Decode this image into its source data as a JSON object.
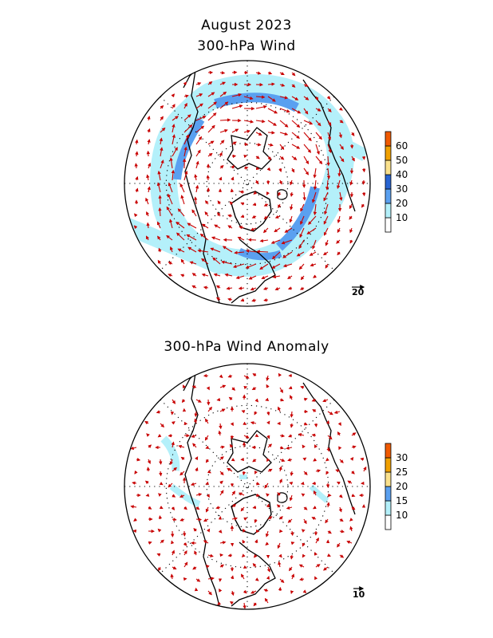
{
  "titles": {
    "month": "August 2023",
    "panel1": "300-hPa Wind",
    "panel2": "300-hPa Wind Anomaly"
  },
  "panel1": {
    "colorbar": {
      "ticks": [
        "10",
        "20",
        "30",
        "40",
        "50",
        "60"
      ],
      "colors": [
        "#ffffff",
        "#b4f0fa",
        "#5aa0f0",
        "#2864d2",
        "#fae18c",
        "#f0a000",
        "#f05a00"
      ]
    },
    "reference_vector": "20"
  },
  "panel2": {
    "colorbar": {
      "ticks": [
        "10",
        "15",
        "20",
        "25",
        "30"
      ],
      "colors": [
        "#ffffff",
        "#b4f0fa",
        "#5aa0f0",
        "#fae18c",
        "#f0a000",
        "#f05a00"
      ]
    },
    "reference_vector": "10"
  },
  "map_style": {
    "vector_color": "#c80000",
    "coast_color": "#000000",
    "grid": "dotted lat/lon circles"
  }
}
